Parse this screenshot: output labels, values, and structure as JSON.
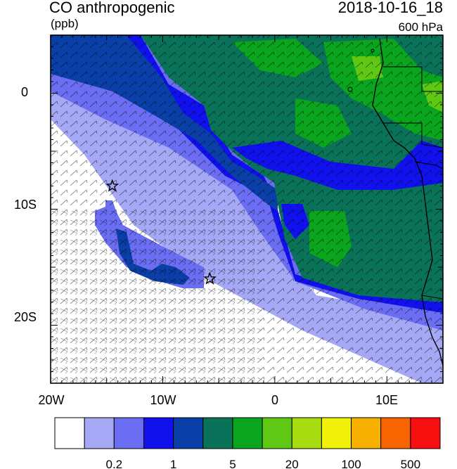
{
  "header": {
    "title": "CO anthropogenic",
    "units": "(ppb)",
    "datetime": "2018-10-16_18",
    "level": "600 hPa"
  },
  "map": {
    "lat_labels": [
      "0",
      "10S",
      "20S"
    ],
    "lon_labels": [
      "20W",
      "10W",
      "0",
      "10E"
    ],
    "lon_range": [
      -20,
      15
    ],
    "lat_range": [
      -25,
      5
    ],
    "markers": [
      {
        "type": "star",
        "lon": -14.5,
        "lat": -8.0
      },
      {
        "type": "star",
        "lon": -5.8,
        "lat": -16.0
      }
    ],
    "wind_barbs": true,
    "coastline": true
  },
  "colorbar": {
    "colors": [
      "#ffffff",
      "#a5a8f5",
      "#6b6ef3",
      "#1111ee",
      "#0b3fa8",
      "#0a7258",
      "#0aa41e",
      "#5ec814",
      "#a8dc10",
      "#f0f00a",
      "#f8b000",
      "#f86400",
      "#f81010"
    ],
    "labels": [
      "0.2",
      "1",
      "5",
      "20",
      "100",
      "500"
    ]
  }
}
